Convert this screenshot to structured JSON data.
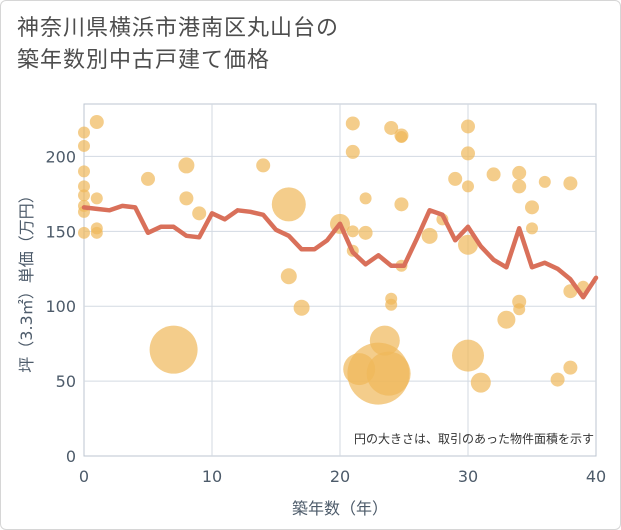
{
  "title_line1": "神奈川県横浜市港南区丸山台の",
  "title_line2": "築年数別中古戸建て価格",
  "chart_data": {
    "type": "scatter",
    "title": "神奈川県横浜市港南区丸山台の築年数別中古戸建て価格",
    "xlabel": "築年数（年）",
    "ylabel": "坪（3.3㎡）単価（万円）",
    "xlim": [
      0,
      40
    ],
    "ylim": [
      0,
      235
    ],
    "xticks": [
      "0",
      "10",
      "20",
      "30",
      "40"
    ],
    "yticks": [
      "0",
      "50",
      "100",
      "150",
      "200"
    ],
    "grid": true,
    "note": "円の大きさは、取引のあった物件面積を示す",
    "colors": {
      "bubble": "#f0b85a",
      "line": "#d9705a"
    },
    "bubbles": [
      {
        "x": 0,
        "y": 216,
        "r": 6
      },
      {
        "x": 0,
        "y": 207,
        "r": 6
      },
      {
        "x": 0,
        "y": 190,
        "r": 6
      },
      {
        "x": 0,
        "y": 180,
        "r": 6
      },
      {
        "x": 0,
        "y": 174,
        "r": 6
      },
      {
        "x": 0,
        "y": 167,
        "r": 6
      },
      {
        "x": 0,
        "y": 163,
        "r": 6
      },
      {
        "x": 0,
        "y": 149,
        "r": 6
      },
      {
        "x": 1,
        "y": 223,
        "r": 7
      },
      {
        "x": 1,
        "y": 172,
        "r": 6
      },
      {
        "x": 1,
        "y": 152,
        "r": 6
      },
      {
        "x": 1,
        "y": 149,
        "r": 6
      },
      {
        "x": 5,
        "y": 185,
        "r": 7
      },
      {
        "x": 7,
        "y": 71,
        "r": 24
      },
      {
        "x": 8,
        "y": 194,
        "r": 8
      },
      {
        "x": 8,
        "y": 172,
        "r": 7
      },
      {
        "x": 9,
        "y": 162,
        "r": 7
      },
      {
        "x": 14,
        "y": 194,
        "r": 7
      },
      {
        "x": 16,
        "y": 168,
        "r": 17
      },
      {
        "x": 16,
        "y": 120,
        "r": 8
      },
      {
        "x": 17,
        "y": 99,
        "r": 8
      },
      {
        "x": 20,
        "y": 155,
        "r": 10
      },
      {
        "x": 21,
        "y": 222,
        "r": 7
      },
      {
        "x": 21,
        "y": 203,
        "r": 7
      },
      {
        "x": 21,
        "y": 150,
        "r": 6
      },
      {
        "x": 21,
        "y": 137,
        "r": 6
      },
      {
        "x": 22,
        "y": 172,
        "r": 6
      },
      {
        "x": 22,
        "y": 149,
        "r": 7
      },
      {
        "x": 21.5,
        "y": 58,
        "r": 16
      },
      {
        "x": 23,
        "y": 55,
        "r": 31
      },
      {
        "x": 23.5,
        "y": 77,
        "r": 15
      },
      {
        "x": 23.8,
        "y": 55,
        "r": 22
      },
      {
        "x": 24,
        "y": 219,
        "r": 7
      },
      {
        "x": 24,
        "y": 105,
        "r": 6
      },
      {
        "x": 24,
        "y": 101,
        "r": 6
      },
      {
        "x": 24.8,
        "y": 214,
        "r": 7
      },
      {
        "x": 24.8,
        "y": 213,
        "r": 6
      },
      {
        "x": 24.8,
        "y": 168,
        "r": 7
      },
      {
        "x": 24.8,
        "y": 127,
        "r": 6
      },
      {
        "x": 27,
        "y": 147,
        "r": 8
      },
      {
        "x": 28,
        "y": 158,
        "r": 6
      },
      {
        "x": 29,
        "y": 185,
        "r": 7
      },
      {
        "x": 30,
        "y": 220,
        "r": 7
      },
      {
        "x": 30,
        "y": 202,
        "r": 7
      },
      {
        "x": 30,
        "y": 180,
        "r": 6
      },
      {
        "x": 30,
        "y": 141,
        "r": 10
      },
      {
        "x": 30,
        "y": 67,
        "r": 16
      },
      {
        "x": 31,
        "y": 49,
        "r": 10
      },
      {
        "x": 32,
        "y": 188,
        "r": 7
      },
      {
        "x": 33,
        "y": 91,
        "r": 9
      },
      {
        "x": 34,
        "y": 189,
        "r": 7
      },
      {
        "x": 34,
        "y": 180,
        "r": 7
      },
      {
        "x": 34,
        "y": 103,
        "r": 7
      },
      {
        "x": 34,
        "y": 98,
        "r": 6
      },
      {
        "x": 35,
        "y": 166,
        "r": 7
      },
      {
        "x": 35,
        "y": 152,
        "r": 6
      },
      {
        "x": 36,
        "y": 183,
        "r": 6
      },
      {
        "x": 37,
        "y": 51,
        "r": 7
      },
      {
        "x": 38,
        "y": 182,
        "r": 7
      },
      {
        "x": 38,
        "y": 110,
        "r": 7
      },
      {
        "x": 38,
        "y": 59,
        "r": 7
      },
      {
        "x": 39,
        "y": 113,
        "r": 6
      }
    ],
    "line": {
      "x": [
        0,
        1,
        2,
        3,
        4,
        5,
        6,
        7,
        8,
        9,
        10,
        11,
        12,
        13,
        14,
        15,
        16,
        17,
        18,
        19,
        20,
        21,
        22,
        23,
        24,
        25,
        26,
        27,
        28,
        29,
        30,
        31,
        32,
        33,
        34,
        35,
        36,
        37,
        38,
        39,
        40
      ],
      "y": [
        166,
        165,
        164,
        167,
        166,
        149,
        153,
        153,
        147,
        146,
        162,
        158,
        164,
        163,
        161,
        151,
        147,
        138,
        138,
        144,
        155,
        136,
        128,
        134,
        127,
        127,
        145,
        164,
        161,
        144,
        153,
        140,
        131,
        126,
        152,
        126,
        129,
        125,
        118,
        106,
        119
      ]
    }
  }
}
